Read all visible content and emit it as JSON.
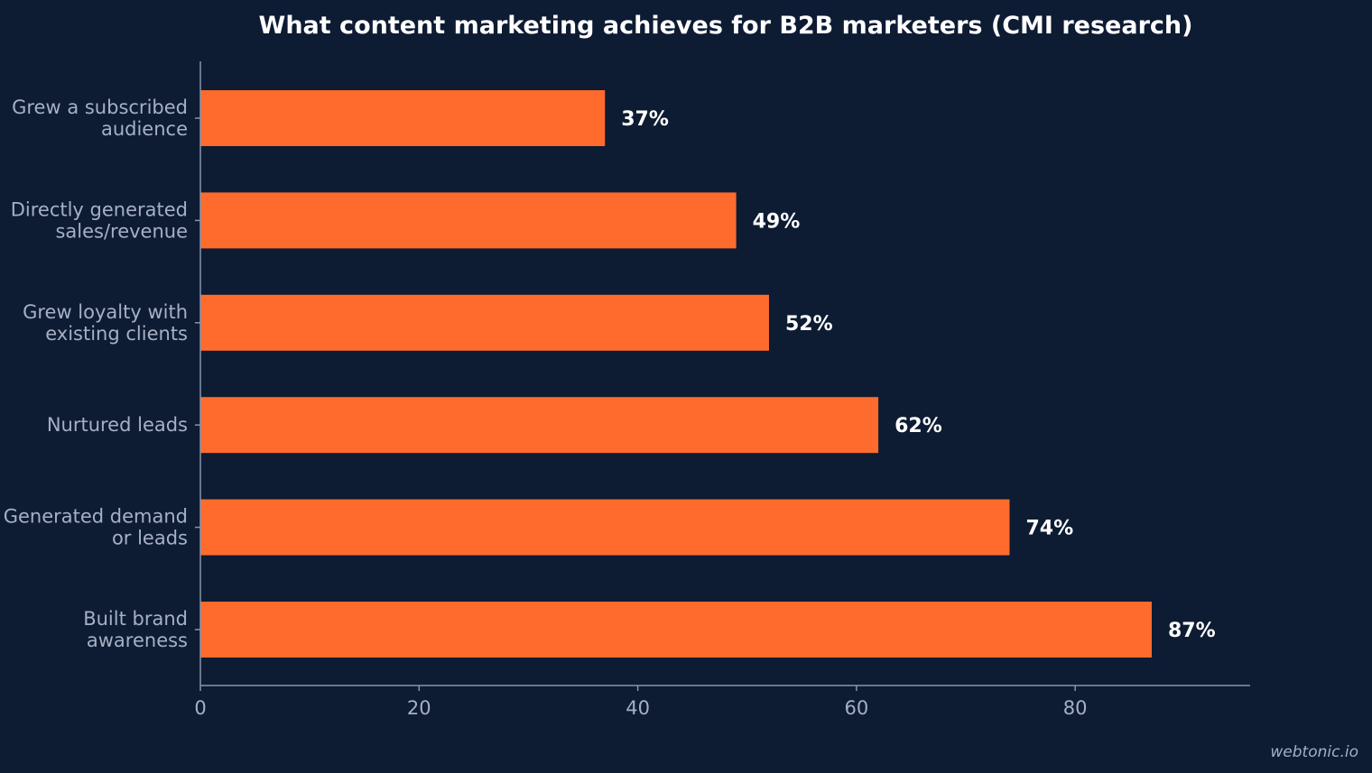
{
  "chart_data": {
    "type": "bar",
    "orientation": "horizontal",
    "title": "What content marketing achieves for B2B marketers (CMI research)",
    "categories": [
      [
        "Grew a subscribed",
        "audience"
      ],
      [
        "Directly generated",
        "sales/revenue"
      ],
      [
        "Grew loyalty with",
        "existing clients"
      ],
      [
        "Nurtured leads"
      ],
      [
        "Generated demand",
        "or leads"
      ],
      [
        "Built brand",
        "awareness"
      ]
    ],
    "values": [
      37,
      49,
      52,
      62,
      74,
      87
    ],
    "value_labels": [
      "37%",
      "49%",
      "52%",
      "62%",
      "74%",
      "87%"
    ],
    "xticks": [
      0,
      20,
      40,
      60,
      80
    ],
    "xlim": [
      0,
      96
    ],
    "xlabel": "",
    "ylabel": "",
    "grid": false,
    "colors": {
      "bar": "#ff6b2c",
      "background": "#0d1b33",
      "text": "#a7b0c2",
      "title": "#ffffff"
    }
  },
  "credit": "webtonic.io"
}
